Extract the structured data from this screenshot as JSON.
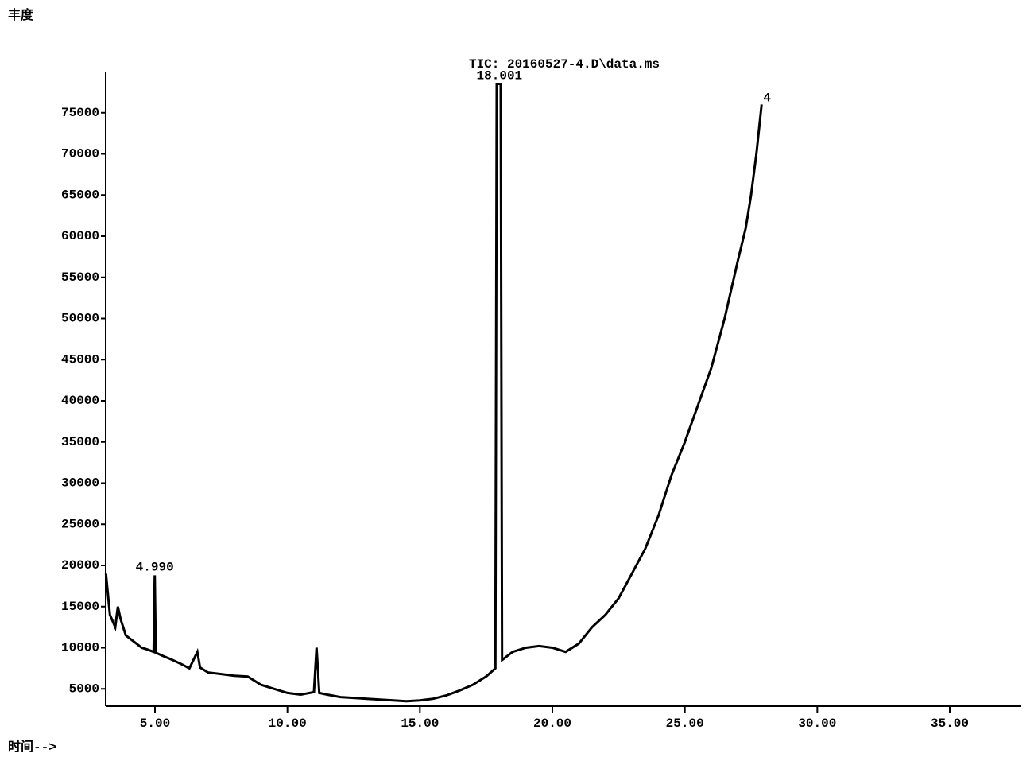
{
  "chart_data": {
    "type": "line",
    "title": "TIC: 20160527-4.D\\data.ms",
    "ylabel": "丰度",
    "xlabel": "时间-->",
    "color": "#000000",
    "xlim": [
      3.14,
      37.7
    ],
    "ylim": [
      2900,
      80000
    ],
    "xticks": [
      {
        "value": 5,
        "label": "5.00"
      },
      {
        "value": 10,
        "label": "10.00"
      },
      {
        "value": 15,
        "label": "15.00"
      },
      {
        "value": 20,
        "label": "20.00"
      },
      {
        "value": 25,
        "label": "25.00"
      },
      {
        "value": 30,
        "label": "30.00"
      },
      {
        "value": 35,
        "label": "35.00"
      }
    ],
    "yticks": [
      5000,
      10000,
      15000,
      20000,
      25000,
      30000,
      35000,
      40000,
      45000,
      50000,
      55000,
      60000,
      65000,
      70000,
      75000
    ],
    "peak_labels": [
      {
        "value": 4.99,
        "label": "4.990"
      },
      {
        "value": 18.001,
        "label": "18.001"
      }
    ],
    "annotations": [
      "4"
    ],
    "x": [
      3.15,
      3.3,
      3.5,
      3.6,
      3.7,
      3.9,
      4.1,
      4.3,
      4.5,
      4.7,
      4.95,
      4.99,
      5.03,
      5.3,
      5.6,
      6.0,
      6.3,
      6.6,
      6.7,
      7.0,
      7.5,
      8.0,
      8.5,
      9.0,
      9.5,
      10.0,
      10.5,
      11.0,
      11.1,
      11.2,
      11.5,
      12.0,
      12.5,
      13.0,
      13.5,
      14.0,
      14.5,
      15.0,
      15.5,
      16.0,
      16.5,
      17.0,
      17.5,
      17.85,
      17.9,
      18.05,
      18.1,
      18.5,
      19.0,
      19.5,
      20.0,
      20.5,
      21.0,
      21.5,
      22.0,
      22.5,
      23.0,
      23.5,
      24.0,
      24.5,
      25.0,
      25.5,
      26.0,
      26.5,
      27.0,
      27.3,
      27.5,
      27.7,
      27.9
    ],
    "values": [
      19000,
      14000,
      12500,
      15000,
      13500,
      11500,
      11000,
      10500,
      10000,
      9800,
      9500,
      18800,
      9400,
      9000,
      8600,
      8000,
      7500,
      9500,
      7600,
      7000,
      6800,
      6600,
      6500,
      5500,
      5000,
      4500,
      4300,
      4600,
      10000,
      4500,
      4300,
      4000,
      3900,
      3800,
      3700,
      3600,
      3500,
      3600,
      3800,
      4200,
      4800,
      5500,
      6500,
      7500,
      78500,
      78500,
      8500,
      9500,
      10000,
      10200,
      10000,
      9500,
      10500,
      12500,
      14000,
      16000,
      19000,
      22000,
      26000,
      31000,
      35000,
      39500,
      44000,
      50000,
      57000,
      61000,
      65000,
      70000,
      76000
    ]
  }
}
